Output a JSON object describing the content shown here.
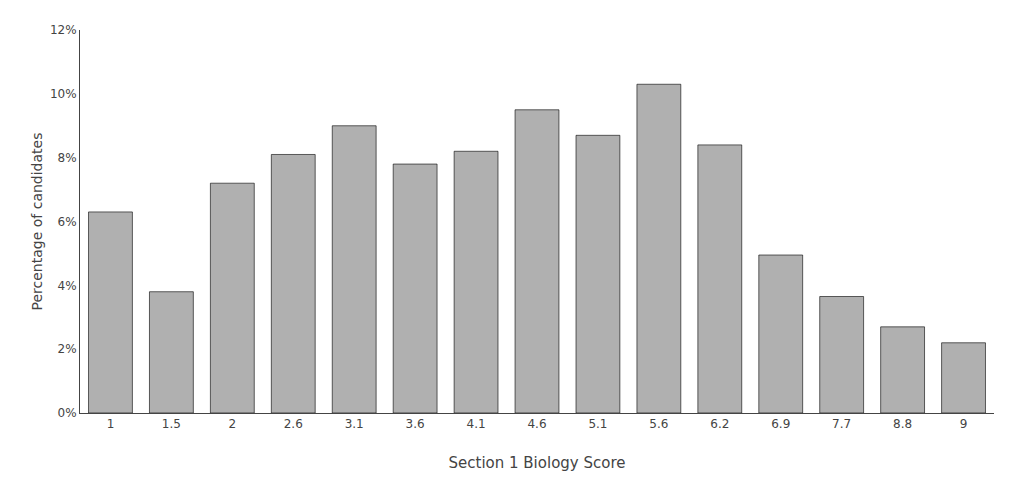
{
  "chart_data": {
    "type": "bar",
    "categories": [
      "1",
      "1.5",
      "2",
      "2.6",
      "3.1",
      "3.6",
      "4.1",
      "4.6",
      "5.1",
      "5.6",
      "6.2",
      "6.9",
      "7.7",
      "8.8",
      "9"
    ],
    "values": [
      6.3,
      3.8,
      7.2,
      8.1,
      9.0,
      7.8,
      8.2,
      9.5,
      8.7,
      10.3,
      8.4,
      4.95,
      3.65,
      2.7,
      2.2
    ],
    "color": "#b0b0b0",
    "xlabel": "Section 1 Biology Score",
    "ylabel": "Percentage of candidates",
    "ylim": [
      0,
      12
    ],
    "yticks": [
      {
        "value": 0,
        "label": "0%"
      },
      {
        "value": 2,
        "label": "2%"
      },
      {
        "value": 4,
        "label": "4%"
      },
      {
        "value": 6,
        "label": "6%"
      },
      {
        "value": 8,
        "label": "8%"
      },
      {
        "value": 10,
        "label": "10%"
      },
      {
        "value": 12,
        "label": "12%"
      }
    ],
    "grid": false
  }
}
